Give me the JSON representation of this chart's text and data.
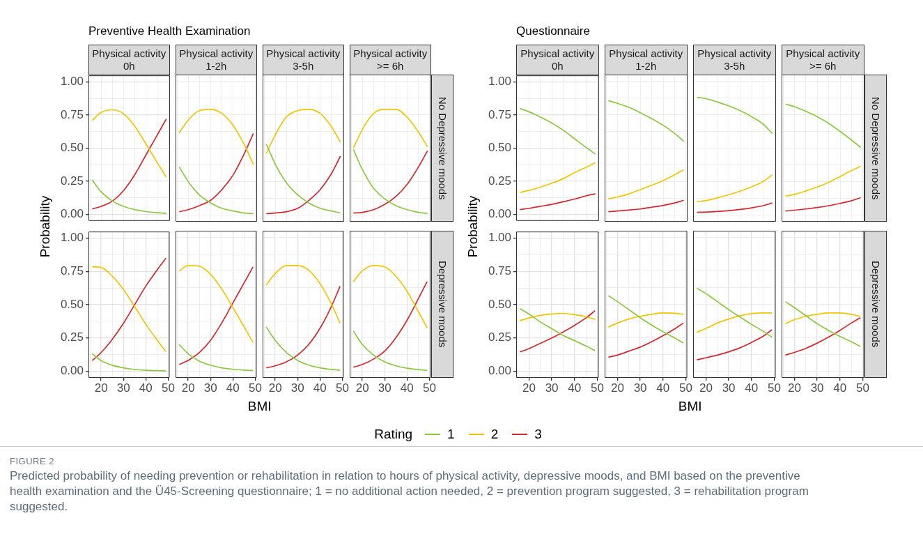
{
  "chart_data": [
    {
      "type": "line",
      "title": "Physical activity\n0h",
      "ylabel": "Probability",
      "annotations": [
        "Preventive Health Examination"
      ],
      "tick_labels": "y",
      "grid": true,
      "x": [
        16,
        20,
        25,
        30,
        35,
        40,
        45,
        49
      ],
      "xlim": [
        14.35,
        50.65
      ],
      "xticks": [
        {
          "value": 15,
          "label": null
        },
        {
          "value": 20,
          "label": null
        },
        {
          "value": 25,
          "label": null
        },
        {
          "value": 30,
          "label": null
        },
        {
          "value": 35,
          "label": null
        },
        {
          "value": 40,
          "label": null
        },
        {
          "value": 45,
          "label": null
        },
        {
          "value": 50,
          "label": null
        }
      ],
      "ylim": [
        -0.05,
        1.05
      ],
      "yticks": [
        {
          "value": 0,
          "label": "0.00"
        },
        {
          "value": 0.125,
          "label": null
        },
        {
          "value": 0.25,
          "label": "0.25"
        },
        {
          "value": 0.375,
          "label": null
        },
        {
          "value": 0.5,
          "label": "0.50"
        },
        {
          "value": 0.625,
          "label": null
        },
        {
          "value": 0.75,
          "label": "0.75"
        },
        {
          "value": 0.875,
          "label": null
        },
        {
          "value": 1,
          "label": "1.00"
        }
      ],
      "series": [
        {
          "color": "#8cc83f",
          "values": [
            0.26,
            0.17,
            0.1,
            0.06,
            0.035,
            0.02,
            0.012,
            0.008
          ]
        },
        {
          "color": "#f2c500",
          "values": [
            0.71,
            0.77,
            0.79,
            0.76,
            0.665,
            0.53,
            0.39,
            0.28
          ]
        },
        {
          "color": "#d8262c",
          "values": [
            0.04,
            0.06,
            0.1,
            0.18,
            0.3,
            0.45,
            0.6,
            0.72
          ]
        }
      ]
    },
    {
      "type": "line",
      "title": "Physical activity\n1-2h",
      "tick_labels": false,
      "grid": true,
      "x": [
        16,
        20,
        25,
        30,
        35,
        40,
        45,
        49
      ],
      "xlim": [
        14.35,
        50.65
      ],
      "xticks": [
        {
          "value": 15,
          "label": null
        },
        {
          "value": 20,
          "label": null
        },
        {
          "value": 25,
          "label": null
        },
        {
          "value": 30,
          "label": null
        },
        {
          "value": 35,
          "label": null
        },
        {
          "value": 40,
          "label": null
        },
        {
          "value": 45,
          "label": null
        },
        {
          "value": 50,
          "label": null
        }
      ],
      "ylim": [
        -0.05,
        1.05
      ],
      "yticks": [
        {
          "value": 0,
          "label": null
        },
        {
          "value": 0.125,
          "label": null
        },
        {
          "value": 0.25,
          "label": null
        },
        {
          "value": 0.375,
          "label": null
        },
        {
          "value": 0.5,
          "label": null
        },
        {
          "value": 0.625,
          "label": null
        },
        {
          "value": 0.75,
          "label": null
        },
        {
          "value": 0.875,
          "label": null
        },
        {
          "value": 1,
          "label": null
        }
      ],
      "series": [
        {
          "color": "#8cc83f",
          "values": [
            0.36,
            0.25,
            0.15,
            0.09,
            0.05,
            0.03,
            0.015,
            0.01
          ]
        },
        {
          "color": "#f2c500",
          "values": [
            0.615,
            0.71,
            0.78,
            0.79,
            0.76,
            0.67,
            0.525,
            0.38
          ]
        },
        {
          "color": "#d8262c",
          "values": [
            0.025,
            0.04,
            0.07,
            0.11,
            0.19,
            0.3,
            0.46,
            0.61
          ]
        }
      ]
    },
    {
      "type": "line",
      "title": "Physical activity\n3-5h",
      "tick_labels": false,
      "grid": true,
      "x": [
        16,
        20,
        25,
        30,
        35,
        40,
        45,
        49
      ],
      "xlim": [
        14.35,
        50.65
      ],
      "xticks": [
        {
          "value": 15,
          "label": null
        },
        {
          "value": 20,
          "label": null
        },
        {
          "value": 25,
          "label": null
        },
        {
          "value": 30,
          "label": null
        },
        {
          "value": 35,
          "label": null
        },
        {
          "value": 40,
          "label": null
        },
        {
          "value": 45,
          "label": null
        },
        {
          "value": 50,
          "label": null
        }
      ],
      "ylim": [
        -0.05,
        1.05
      ],
      "yticks": [
        {
          "value": 0,
          "label": null
        },
        {
          "value": 0.125,
          "label": null
        },
        {
          "value": 0.25,
          "label": null
        },
        {
          "value": 0.375,
          "label": null
        },
        {
          "value": 0.5,
          "label": null
        },
        {
          "value": 0.625,
          "label": null
        },
        {
          "value": 0.75,
          "label": null
        },
        {
          "value": 0.875,
          "label": null
        },
        {
          "value": 1,
          "label": null
        }
      ],
      "series": [
        {
          "color": "#8cc83f",
          "values": [
            0.53,
            0.38,
            0.24,
            0.15,
            0.09,
            0.05,
            0.03,
            0.015
          ]
        },
        {
          "color": "#f2c500",
          "values": [
            0.46,
            0.6,
            0.735,
            0.78,
            0.79,
            0.76,
            0.66,
            0.545
          ]
        },
        {
          "color": "#d8262c",
          "values": [
            0.01,
            0.015,
            0.025,
            0.05,
            0.11,
            0.19,
            0.31,
            0.44
          ]
        }
      ]
    },
    {
      "type": "line",
      "title": "Physical activity\n>= 6h",
      "y2label": "No Depressive moods",
      "tick_labels": false,
      "grid": true,
      "x": [
        16,
        20,
        25,
        30,
        35,
        40,
        45,
        49
      ],
      "xlim": [
        14.35,
        50.65
      ],
      "xticks": [
        {
          "value": 15,
          "label": null
        },
        {
          "value": 20,
          "label": null
        },
        {
          "value": 25,
          "label": null
        },
        {
          "value": 30,
          "label": null
        },
        {
          "value": 35,
          "label": null
        },
        {
          "value": 40,
          "label": null
        },
        {
          "value": 45,
          "label": null
        },
        {
          "value": 50,
          "label": null
        }
      ],
      "ylim": [
        -0.05,
        1.05
      ],
      "yticks": [
        {
          "value": 0,
          "label": null
        },
        {
          "value": 0.125,
          "label": null
        },
        {
          "value": 0.25,
          "label": null
        },
        {
          "value": 0.375,
          "label": null
        },
        {
          "value": 0.5,
          "label": null
        },
        {
          "value": 0.625,
          "label": null
        },
        {
          "value": 0.75,
          "label": null
        },
        {
          "value": 0.875,
          "label": null
        },
        {
          "value": 1,
          "label": null
        }
      ],
      "series": [
        {
          "color": "#8cc83f",
          "values": [
            0.49,
            0.34,
            0.2,
            0.12,
            0.07,
            0.04,
            0.02,
            0.012
          ]
        },
        {
          "color": "#f2c500",
          "values": [
            0.5,
            0.64,
            0.76,
            0.79,
            0.79,
            0.73,
            0.62,
            0.51
          ]
        },
        {
          "color": "#d8262c",
          "values": [
            0.015,
            0.02,
            0.04,
            0.08,
            0.14,
            0.23,
            0.36,
            0.48
          ]
        }
      ]
    },
    {
      "type": "line",
      "xlabel": "BMI",
      "grid": true,
      "x": [
        16,
        20,
        25,
        30,
        35,
        40,
        45,
        49
      ],
      "xlim": [
        14.35,
        50.65
      ],
      "xticks": [
        {
          "value": 15,
          "label": null
        },
        20,
        {
          "value": 25,
          "label": null
        },
        30,
        {
          "value": 35,
          "label": null
        },
        40,
        {
          "value": 45,
          "label": null
        },
        50
      ],
      "ylim": [
        -0.05,
        1.05
      ],
      "yticks": [
        {
          "value": 0,
          "label": "0.00"
        },
        {
          "value": 0.125,
          "label": null
        },
        {
          "value": 0.25,
          "label": "0.25"
        },
        {
          "value": 0.375,
          "label": null
        },
        {
          "value": 0.5,
          "label": "0.50"
        },
        {
          "value": 0.625,
          "label": null
        },
        {
          "value": 0.75,
          "label": "0.75"
        },
        {
          "value": 0.875,
          "label": null
        },
        {
          "value": 1,
          "label": "1.00"
        }
      ],
      "series": [
        {
          "color": "#8cc83f",
          "values": [
            0.13,
            0.08,
            0.045,
            0.025,
            0.013,
            0.007,
            0.004,
            0.002
          ]
        },
        {
          "color": "#f2c500",
          "values": [
            0.785,
            0.78,
            0.715,
            0.615,
            0.487,
            0.353,
            0.236,
            0.148
          ]
        },
        {
          "color": "#d8262c",
          "values": [
            0.08,
            0.14,
            0.24,
            0.36,
            0.5,
            0.64,
            0.76,
            0.85
          ]
        }
      ]
    },
    {
      "type": "line",
      "tick_labels": "x",
      "grid": true,
      "x": [
        16,
        20,
        25,
        30,
        35,
        40,
        45,
        49
      ],
      "xlim": [
        14.35,
        50.65
      ],
      "xticks": [
        {
          "value": 15,
          "label": null
        },
        20,
        {
          "value": 25,
          "label": null
        },
        30,
        {
          "value": 35,
          "label": null
        },
        40,
        {
          "value": 45,
          "label": null
        },
        50
      ],
      "ylim": [
        -0.05,
        1.05
      ],
      "yticks": [
        {
          "value": 0,
          "label": null
        },
        {
          "value": 0.125,
          "label": null
        },
        {
          "value": 0.25,
          "label": null
        },
        {
          "value": 0.375,
          "label": null
        },
        {
          "value": 0.5,
          "label": null
        },
        {
          "value": 0.625,
          "label": null
        },
        {
          "value": 0.75,
          "label": null
        },
        {
          "value": 0.875,
          "label": null
        },
        {
          "value": 1,
          "label": null
        }
      ],
      "series": [
        {
          "color": "#8cc83f",
          "values": [
            0.2,
            0.13,
            0.075,
            0.045,
            0.025,
            0.014,
            0.008,
            0.005
          ]
        },
        {
          "color": "#f2c500",
          "values": [
            0.75,
            0.79,
            0.785,
            0.725,
            0.615,
            0.476,
            0.332,
            0.215
          ]
        },
        {
          "color": "#d8262c",
          "values": [
            0.05,
            0.08,
            0.14,
            0.23,
            0.36,
            0.51,
            0.66,
            0.78
          ]
        }
      ]
    },
    {
      "type": "line",
      "tick_labels": "x",
      "grid": true,
      "x": [
        16,
        20,
        25,
        30,
        35,
        40,
        45,
        49
      ],
      "xlim": [
        14.35,
        50.65
      ],
      "xticks": [
        {
          "value": 15,
          "label": null
        },
        20,
        {
          "value": 25,
          "label": null
        },
        30,
        {
          "value": 35,
          "label": null
        },
        40,
        {
          "value": 45,
          "label": null
        },
        50
      ],
      "ylim": [
        -0.05,
        1.05
      ],
      "yticks": [
        {
          "value": 0,
          "label": null
        },
        {
          "value": 0.125,
          "label": null
        },
        {
          "value": 0.25,
          "label": null
        },
        {
          "value": 0.375,
          "label": null
        },
        {
          "value": 0.5,
          "label": null
        },
        {
          "value": 0.625,
          "label": null
        },
        {
          "value": 0.75,
          "label": null
        },
        {
          "value": 0.875,
          "label": null
        },
        {
          "value": 1,
          "label": null
        }
      ],
      "series": [
        {
          "color": "#8cc83f",
          "values": [
            0.33,
            0.23,
            0.14,
            0.08,
            0.045,
            0.025,
            0.013,
            0.007
          ]
        },
        {
          "color": "#f2c500",
          "values": [
            0.645,
            0.73,
            0.79,
            0.79,
            0.755,
            0.655,
            0.507,
            0.358
          ]
        },
        {
          "color": "#d8262c",
          "values": [
            0.025,
            0.04,
            0.07,
            0.12,
            0.2,
            0.32,
            0.48,
            0.635
          ]
        }
      ]
    },
    {
      "type": "line",
      "y2label": "Depressive moods",
      "tick_labels": "x",
      "grid": true,
      "x": [
        16,
        20,
        25,
        30,
        35,
        40,
        45,
        49
      ],
      "xlim": [
        14.35,
        50.65
      ],
      "xticks": [
        {
          "value": 15,
          "label": null
        },
        20,
        {
          "value": 25,
          "label": null
        },
        30,
        {
          "value": 35,
          "label": null
        },
        40,
        {
          "value": 45,
          "label": null
        },
        50
      ],
      "ylim": [
        -0.05,
        1.05
      ],
      "yticks": [
        {
          "value": 0,
          "label": null
        },
        {
          "value": 0.125,
          "label": null
        },
        {
          "value": 0.25,
          "label": null
        },
        {
          "value": 0.375,
          "label": null
        },
        {
          "value": 0.5,
          "label": null
        },
        {
          "value": 0.625,
          "label": null
        },
        {
          "value": 0.75,
          "label": null
        },
        {
          "value": 0.875,
          "label": null
        },
        {
          "value": 1,
          "label": null
        }
      ],
      "series": [
        {
          "color": "#8cc83f",
          "values": [
            0.3,
            0.2,
            0.12,
            0.07,
            0.04,
            0.022,
            0.012,
            0.006
          ]
        },
        {
          "color": "#f2c500",
          "values": [
            0.67,
            0.75,
            0.79,
            0.78,
            0.71,
            0.598,
            0.448,
            0.324
          ]
        },
        {
          "color": "#d8262c",
          "values": [
            0.03,
            0.05,
            0.09,
            0.15,
            0.25,
            0.38,
            0.54,
            0.67
          ]
        }
      ]
    },
    {
      "type": "line",
      "title": "Physical activity\n0h",
      "ylabel": "Probability",
      "annotations": [
        "Questionnaire"
      ],
      "tick_labels": "y",
      "grid": true,
      "x": [
        16,
        20,
        25,
        30,
        35,
        40,
        45,
        49
      ],
      "xlim": [
        14.35,
        50.65
      ],
      "xticks": [
        {
          "value": 15,
          "label": null
        },
        {
          "value": 20,
          "label": null
        },
        {
          "value": 25,
          "label": null
        },
        {
          "value": 30,
          "label": null
        },
        {
          "value": 35,
          "label": null
        },
        {
          "value": 40,
          "label": null
        },
        {
          "value": 45,
          "label": null
        },
        {
          "value": 50,
          "label": null
        }
      ],
      "ylim": [
        -0.05,
        1.05
      ],
      "yticks": [
        {
          "value": 0,
          "label": "0.00"
        },
        {
          "value": 0.125,
          "label": null
        },
        {
          "value": 0.25,
          "label": "0.25"
        },
        {
          "value": 0.375,
          "label": null
        },
        {
          "value": 0.5,
          "label": "0.50"
        },
        {
          "value": 0.625,
          "label": null
        },
        {
          "value": 0.75,
          "label": "0.75"
        },
        {
          "value": 0.875,
          "label": null
        },
        {
          "value": 1,
          "label": "1.00"
        }
      ],
      "series": [
        {
          "color": "#8cc83f",
          "values": [
            0.8,
            0.775,
            0.735,
            0.69,
            0.635,
            0.57,
            0.505,
            0.455
          ]
        },
        {
          "color": "#f2c500",
          "values": [
            0.165,
            0.18,
            0.205,
            0.235,
            0.27,
            0.315,
            0.355,
            0.39
          ]
        },
        {
          "color": "#d8262c",
          "values": [
            0.035,
            0.045,
            0.06,
            0.075,
            0.095,
            0.115,
            0.14,
            0.155
          ]
        }
      ]
    },
    {
      "type": "line",
      "title": "Physical activity\n1-2h",
      "tick_labels": false,
      "grid": true,
      "x": [
        16,
        20,
        25,
        30,
        35,
        40,
        45,
        49
      ],
      "xlim": [
        14.35,
        50.65
      ],
      "xticks": [
        {
          "value": 15,
          "label": null
        },
        {
          "value": 20,
          "label": null
        },
        {
          "value": 25,
          "label": null
        },
        {
          "value": 30,
          "label": null
        },
        {
          "value": 35,
          "label": null
        },
        {
          "value": 40,
          "label": null
        },
        {
          "value": 45,
          "label": null
        },
        {
          "value": 50,
          "label": null
        }
      ],
      "ylim": [
        -0.05,
        1.05
      ],
      "yticks": [
        {
          "value": 0,
          "label": null
        },
        {
          "value": 0.125,
          "label": null
        },
        {
          "value": 0.25,
          "label": null
        },
        {
          "value": 0.375,
          "label": null
        },
        {
          "value": 0.5,
          "label": null
        },
        {
          "value": 0.625,
          "label": null
        },
        {
          "value": 0.75,
          "label": null
        },
        {
          "value": 0.875,
          "label": null
        },
        {
          "value": 1,
          "label": null
        }
      ],
      "series": [
        {
          "color": "#8cc83f",
          "values": [
            0.855,
            0.835,
            0.805,
            0.765,
            0.72,
            0.67,
            0.61,
            0.55
          ]
        },
        {
          "color": "#f2c500",
          "values": [
            0.12,
            0.135,
            0.158,
            0.19,
            0.222,
            0.258,
            0.3,
            0.34
          ]
        },
        {
          "color": "#d8262c",
          "values": [
            0.025,
            0.03,
            0.037,
            0.045,
            0.058,
            0.072,
            0.09,
            0.11
          ]
        }
      ]
    },
    {
      "type": "line",
      "title": "Physical activity\n3-5h",
      "tick_labels": false,
      "grid": true,
      "x": [
        16,
        20,
        25,
        30,
        35,
        40,
        45,
        49
      ],
      "xlim": [
        14.35,
        50.65
      ],
      "xticks": [
        {
          "value": 15,
          "label": null
        },
        {
          "value": 20,
          "label": null
        },
        {
          "value": 25,
          "label": null
        },
        {
          "value": 30,
          "label": null
        },
        {
          "value": 35,
          "label": null
        },
        {
          "value": 40,
          "label": null
        },
        {
          "value": 45,
          "label": null
        },
        {
          "value": 50,
          "label": null
        }
      ],
      "ylim": [
        -0.05,
        1.05
      ],
      "yticks": [
        {
          "value": 0,
          "label": null
        },
        {
          "value": 0.125,
          "label": null
        },
        {
          "value": 0.25,
          "label": null
        },
        {
          "value": 0.375,
          "label": null
        },
        {
          "value": 0.5,
          "label": null
        },
        {
          "value": 0.625,
          "label": null
        },
        {
          "value": 0.75,
          "label": null
        },
        {
          "value": 0.875,
          "label": null
        },
        {
          "value": 1,
          "label": null
        }
      ],
      "series": [
        {
          "color": "#8cc83f",
          "values": [
            0.88,
            0.87,
            0.845,
            0.815,
            0.78,
            0.735,
            0.68,
            0.61
          ]
        },
        {
          "color": "#f2c500",
          "values": [
            0.1,
            0.108,
            0.128,
            0.152,
            0.178,
            0.211,
            0.25,
            0.3
          ]
        },
        {
          "color": "#d8262c",
          "values": [
            0.02,
            0.022,
            0.027,
            0.033,
            0.042,
            0.054,
            0.07,
            0.09
          ]
        }
      ]
    },
    {
      "type": "line",
      "title": "Physical activity\n>= 6h",
      "y2label": "No Depressive moods",
      "tick_labels": false,
      "grid": true,
      "x": [
        16,
        20,
        25,
        30,
        35,
        40,
        45,
        49
      ],
      "xlim": [
        14.35,
        50.65
      ],
      "xticks": [
        {
          "value": 15,
          "label": null
        },
        {
          "value": 20,
          "label": null
        },
        {
          "value": 25,
          "label": null
        },
        {
          "value": 30,
          "label": null
        },
        {
          "value": 35,
          "label": null
        },
        {
          "value": 40,
          "label": null
        },
        {
          "value": 45,
          "label": null
        },
        {
          "value": 50,
          "label": null
        }
      ],
      "ylim": [
        -0.05,
        1.05
      ],
      "yticks": [
        {
          "value": 0,
          "label": null
        },
        {
          "value": 0.125,
          "label": null
        },
        {
          "value": 0.25,
          "label": null
        },
        {
          "value": 0.375,
          "label": null
        },
        {
          "value": 0.5,
          "label": null
        },
        {
          "value": 0.625,
          "label": null
        },
        {
          "value": 0.75,
          "label": null
        },
        {
          "value": 0.875,
          "label": null
        },
        {
          "value": 1,
          "label": null
        }
      ],
      "series": [
        {
          "color": "#8cc83f",
          "values": [
            0.83,
            0.81,
            0.775,
            0.735,
            0.685,
            0.625,
            0.56,
            0.505
          ]
        },
        {
          "color": "#f2c500",
          "values": [
            0.14,
            0.154,
            0.18,
            0.209,
            0.245,
            0.288,
            0.333,
            0.365
          ]
        },
        {
          "color": "#d8262c",
          "values": [
            0.03,
            0.036,
            0.045,
            0.056,
            0.07,
            0.087,
            0.107,
            0.13
          ]
        }
      ]
    },
    {
      "type": "line",
      "xlabel": "BMI",
      "grid": true,
      "x": [
        16,
        20,
        25,
        30,
        35,
        40,
        45,
        49
      ],
      "xlim": [
        14.35,
        50.65
      ],
      "xticks": [
        {
          "value": 15,
          "label": null
        },
        20,
        {
          "value": 25,
          "label": null
        },
        30,
        {
          "value": 35,
          "label": null
        },
        40,
        {
          "value": 45,
          "label": null
        },
        50
      ],
      "ylim": [
        -0.05,
        1.05
      ],
      "yticks": [
        {
          "value": 0,
          "label": "0.00"
        },
        {
          "value": 0.125,
          "label": null
        },
        {
          "value": 0.25,
          "label": "0.25"
        },
        {
          "value": 0.375,
          "label": null
        },
        {
          "value": 0.5,
          "label": "0.50"
        },
        {
          "value": 0.625,
          "label": null
        },
        {
          "value": 0.75,
          "label": "0.75"
        },
        {
          "value": 0.875,
          "label": null
        },
        {
          "value": 1,
          "label": "1.00"
        }
      ],
      "series": [
        {
          "color": "#8cc83f",
          "values": [
            0.47,
            0.43,
            0.37,
            0.32,
            0.27,
            0.23,
            0.19,
            0.155
          ]
        },
        {
          "color": "#f2c500",
          "values": [
            0.38,
            0.4,
            0.42,
            0.43,
            0.435,
            0.425,
            0.41,
            0.39
          ]
        },
        {
          "color": "#d8262c",
          "values": [
            0.145,
            0.17,
            0.21,
            0.25,
            0.295,
            0.345,
            0.4,
            0.455
          ]
        }
      ]
    },
    {
      "type": "line",
      "tick_labels": "x",
      "grid": true,
      "x": [
        16,
        20,
        25,
        30,
        35,
        40,
        45,
        49
      ],
      "xlim": [
        14.35,
        50.65
      ],
      "xticks": [
        {
          "value": 15,
          "label": null
        },
        20,
        {
          "value": 25,
          "label": null
        },
        30,
        {
          "value": 35,
          "label": null
        },
        40,
        {
          "value": 45,
          "label": null
        },
        50
      ],
      "ylim": [
        -0.05,
        1.05
      ],
      "yticks": [
        {
          "value": 0,
          "label": null
        },
        {
          "value": 0.125,
          "label": null
        },
        {
          "value": 0.25,
          "label": null
        },
        {
          "value": 0.375,
          "label": null
        },
        {
          "value": 0.5,
          "label": null
        },
        {
          "value": 0.625,
          "label": null
        },
        {
          "value": 0.75,
          "label": null
        },
        {
          "value": 0.875,
          "label": null
        },
        {
          "value": 1,
          "label": null
        }
      ],
      "series": [
        {
          "color": "#8cc83f",
          "values": [
            0.565,
            0.52,
            0.46,
            0.4,
            0.345,
            0.295,
            0.25,
            0.21
          ]
        },
        {
          "color": "#f2c500",
          "values": [
            0.33,
            0.36,
            0.39,
            0.41,
            0.425,
            0.435,
            0.433,
            0.425
          ]
        },
        {
          "color": "#d8262c",
          "values": [
            0.105,
            0.12,
            0.15,
            0.18,
            0.22,
            0.265,
            0.315,
            0.36
          ]
        }
      ]
    },
    {
      "type": "line",
      "tick_labels": "x",
      "grid": true,
      "x": [
        16,
        20,
        25,
        30,
        35,
        40,
        45,
        49
      ],
      "xlim": [
        14.35,
        50.65
      ],
      "xticks": [
        {
          "value": 15,
          "label": null
        },
        20,
        {
          "value": 25,
          "label": null
        },
        30,
        {
          "value": 35,
          "label": null
        },
        40,
        {
          "value": 45,
          "label": null
        },
        50
      ],
      "ylim": [
        -0.05,
        1.05
      ],
      "yticks": [
        {
          "value": 0,
          "label": null
        },
        {
          "value": 0.125,
          "label": null
        },
        {
          "value": 0.25,
          "label": null
        },
        {
          "value": 0.375,
          "label": null
        },
        {
          "value": 0.5,
          "label": null
        },
        {
          "value": 0.625,
          "label": null
        },
        {
          "value": 0.75,
          "label": null
        },
        {
          "value": 0.875,
          "label": null
        },
        {
          "value": 1,
          "label": null
        }
      ],
      "series": [
        {
          "color": "#8cc83f",
          "values": [
            0.62,
            0.58,
            0.52,
            0.46,
            0.405,
            0.35,
            0.3,
            0.255
          ]
        },
        {
          "color": "#f2c500",
          "values": [
            0.29,
            0.32,
            0.36,
            0.39,
            0.415,
            0.43,
            0.435,
            0.435
          ]
        },
        {
          "color": "#d8262c",
          "values": [
            0.085,
            0.1,
            0.12,
            0.145,
            0.175,
            0.215,
            0.26,
            0.31
          ]
        }
      ]
    },
    {
      "type": "line",
      "y2label": "Depressive moods",
      "tick_labels": "x",
      "grid": true,
      "legend": "bottom",
      "legend_title": "Rating",
      "annotations": [
        "FIGURE 2",
        "Predicted probability of needing prevention or rehabilitation in relation to hours of physical activity, depressive moods, and BMI based on the preventive health examination and the Ü45-Screening questionnaire; 1 = no additional action needed, 2 = prevention program suggested, 3 = rehabilitation program suggested."
      ],
      "x": [
        16,
        20,
        25,
        30,
        35,
        40,
        45,
        49
      ],
      "xlim": [
        14.35,
        50.65
      ],
      "xticks": [
        {
          "value": 15,
          "label": null
        },
        20,
        {
          "value": 25,
          "label": null
        },
        30,
        {
          "value": 35,
          "label": null
        },
        40,
        {
          "value": 45,
          "label": null
        },
        50
      ],
      "ylim": [
        -0.05,
        1.05
      ],
      "yticks": [
        {
          "value": 0,
          "label": null
        },
        {
          "value": 0.125,
          "label": null
        },
        {
          "value": 0.25,
          "label": null
        },
        {
          "value": 0.375,
          "label": null
        },
        {
          "value": 0.5,
          "label": null
        },
        {
          "value": 0.625,
          "label": null
        },
        {
          "value": 0.75,
          "label": null
        },
        {
          "value": 0.875,
          "label": null
        },
        {
          "value": 1,
          "label": null
        }
      ],
      "series": [
        {
          "name": "1",
          "color": "#8cc83f",
          "values": [
            0.52,
            0.475,
            0.415,
            0.355,
            0.305,
            0.26,
            0.22,
            0.185
          ]
        },
        {
          "name": "2",
          "color": "#f2c500",
          "values": [
            0.355,
            0.385,
            0.41,
            0.425,
            0.435,
            0.435,
            0.425,
            0.41
          ]
        },
        {
          "name": "3",
          "color": "#d8262c",
          "values": [
            0.12,
            0.14,
            0.17,
            0.21,
            0.255,
            0.305,
            0.36,
            0.4
          ]
        }
      ]
    }
  ]
}
